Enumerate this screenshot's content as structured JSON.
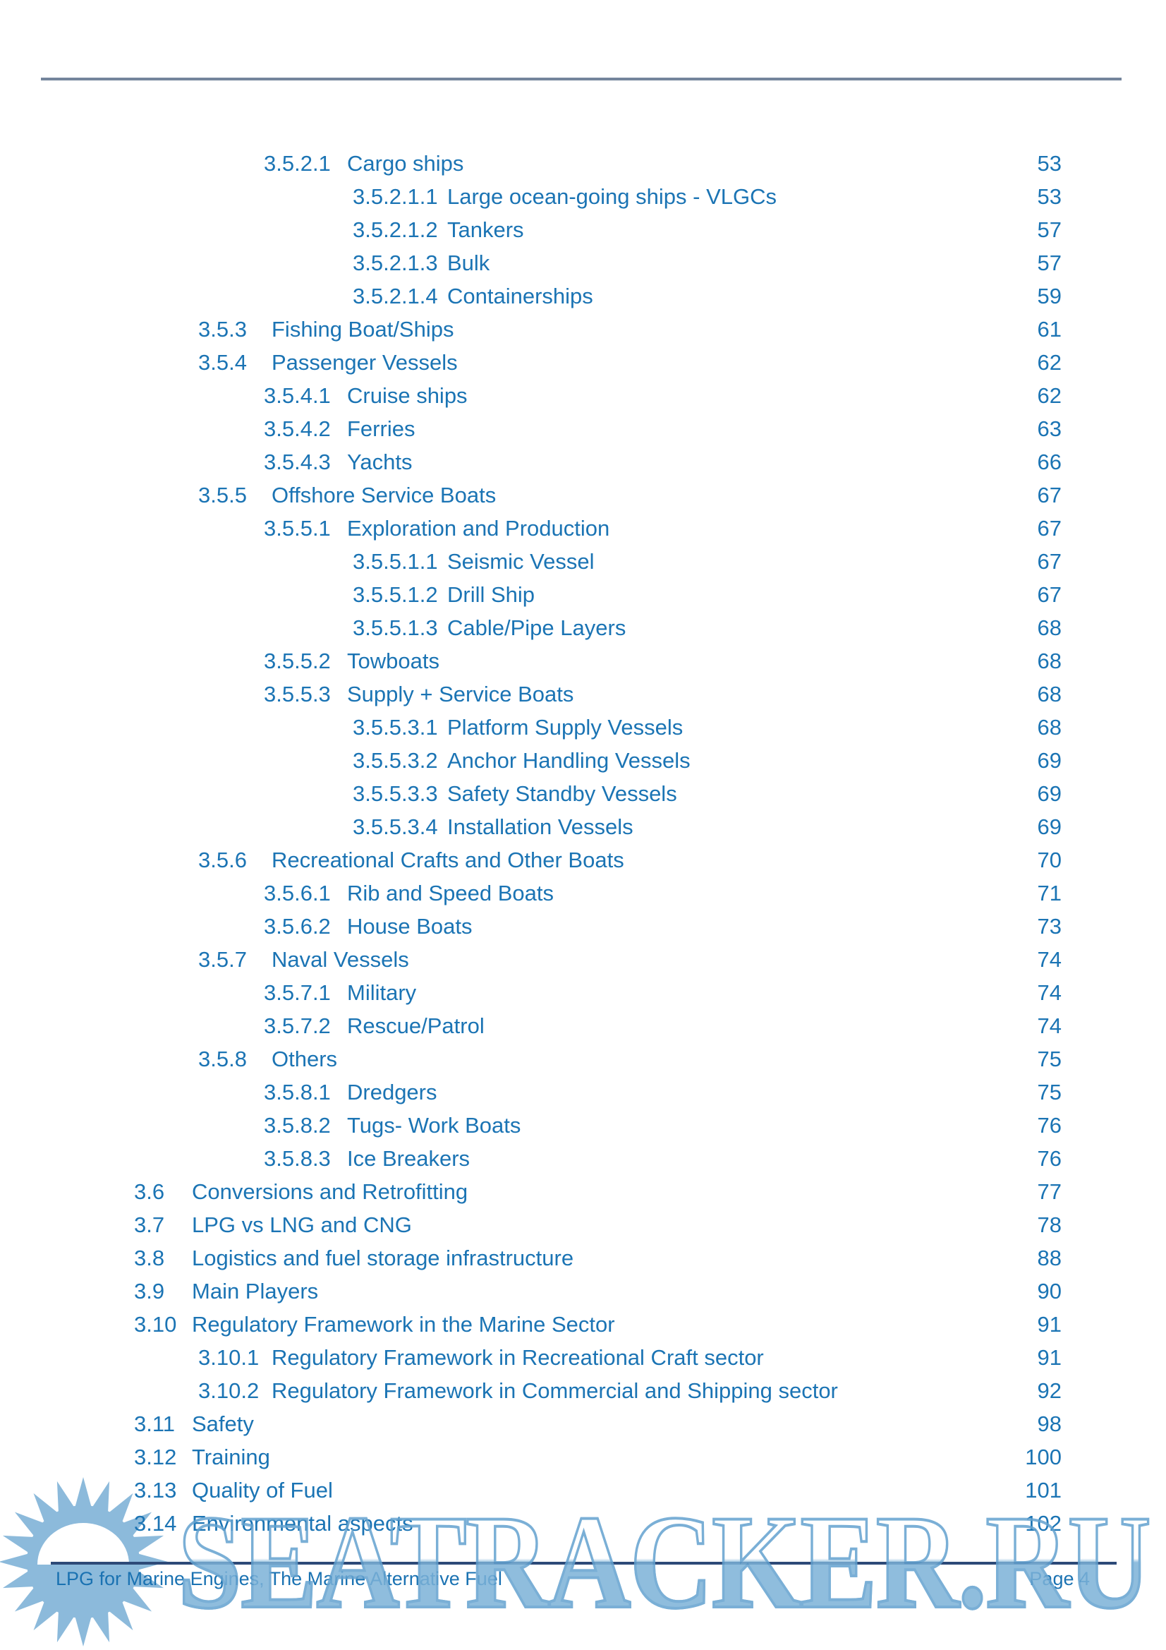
{
  "colors": {
    "toc_text": "#1b74b4",
    "header_rule": "#74859c",
    "footer_rule": "#2d4a78",
    "watermark_fill": "#7cb2d8",
    "watermark_outline": "#63a2cf",
    "sun_logo": "#8cbadb"
  },
  "watermark": {
    "text": "SEATRACKER.RU"
  },
  "logo": {
    "icon": "sun-logo"
  },
  "footer": {
    "left_text": "LPG for Marine Engines, The Marine Alternative Fuel",
    "page_label": "Page 4"
  },
  "toc": {
    "entries": [
      {
        "num": "3.5.2.1",
        "title": "Cargo ships",
        "page": "53",
        "level": 3
      },
      {
        "num": "3.5.2.1.1",
        "title": "Large ocean-going ships - VLGCs",
        "page": "53",
        "level": 4
      },
      {
        "num": "3.5.2.1.2",
        "title": "Tankers",
        "page": "57",
        "level": 4
      },
      {
        "num": "3.5.2.1.3",
        "title": "Bulk",
        "page": "57",
        "level": 4
      },
      {
        "num": "3.5.2.1.4",
        "title": "Containerships",
        "page": "59",
        "level": 4
      },
      {
        "num": "3.5.3",
        "title": "Fishing Boat/Ships",
        "page": "61",
        "level": 2
      },
      {
        "num": "3.5.4",
        "title": "Passenger Vessels",
        "page": "62",
        "level": 2
      },
      {
        "num": "3.5.4.1",
        "title": "Cruise ships",
        "page": "62",
        "level": 3
      },
      {
        "num": "3.5.4.2",
        "title": "Ferries",
        "page": "63",
        "level": 3
      },
      {
        "num": "3.5.4.3",
        "title": "Yachts",
        "page": "66",
        "level": 3
      },
      {
        "num": "3.5.5",
        "title": "Offshore Service Boats",
        "page": "67",
        "level": 2
      },
      {
        "num": "3.5.5.1",
        "title": "Exploration and Production",
        "page": "67",
        "level": 3
      },
      {
        "num": "3.5.5.1.1",
        "title": "Seismic Vessel",
        "page": "67",
        "level": 4
      },
      {
        "num": "3.5.5.1.2",
        "title": "Drill Ship",
        "page": "67",
        "level": 4
      },
      {
        "num": "3.5.5.1.3",
        "title": "Cable/Pipe Layers",
        "page": "68",
        "level": 4
      },
      {
        "num": "3.5.5.2",
        "title": "Towboats",
        "page": "68",
        "level": 3
      },
      {
        "num": "3.5.5.3",
        "title": "Supply + Service Boats",
        "page": "68",
        "level": 3
      },
      {
        "num": "3.5.5.3.1",
        "title": "Platform Supply Vessels",
        "page": "68",
        "level": 4
      },
      {
        "num": "3.5.5.3.2",
        "title": "Anchor Handling Vessels",
        "page": "69",
        "level": 4
      },
      {
        "num": "3.5.5.3.3",
        "title": "Safety Standby Vessels",
        "page": "69",
        "level": 4
      },
      {
        "num": "3.5.5.3.4",
        "title": "Installation Vessels",
        "page": "69",
        "level": 4
      },
      {
        "num": "3.5.6",
        "title": "Recreational Crafts and Other Boats",
        "page": "70",
        "level": 2
      },
      {
        "num": "3.5.6.1",
        "title": "Rib and Speed Boats",
        "page": "71",
        "level": 3
      },
      {
        "num": "3.5.6.2",
        "title": "House Boats",
        "page": "73",
        "level": 3
      },
      {
        "num": "3.5.7",
        "title": "Naval Vessels",
        "page": "74",
        "level": 2
      },
      {
        "num": "3.5.7.1",
        "title": "Military",
        "page": "74",
        "level": 3
      },
      {
        "num": "3.5.7.2",
        "title": "Rescue/Patrol",
        "page": "74",
        "level": 3
      },
      {
        "num": "3.5.8",
        "title": "Others",
        "page": "75",
        "level": 2
      },
      {
        "num": "3.5.8.1",
        "title": "Dredgers",
        "page": "75",
        "level": 3
      },
      {
        "num": "3.5.8.2",
        "title": "Tugs- Work Boats",
        "page": "76",
        "level": 3
      },
      {
        "num": "3.5.8.3",
        "title": "Ice Breakers",
        "page": "76",
        "level": 3
      },
      {
        "num": "3.6",
        "title": "Conversions and Retrofitting",
        "page": "77",
        "level": 1
      },
      {
        "num": "3.7",
        "title": "LPG vs LNG and CNG",
        "page": "78",
        "level": 1
      },
      {
        "num": "3.8",
        "title": "Logistics and fuel storage infrastructure",
        "page": "88",
        "level": 1
      },
      {
        "num": "3.9",
        "title": "Main Players",
        "page": "90",
        "level": 1
      },
      {
        "num": "3.10",
        "title": "Regulatory Framework in the Marine Sector",
        "page": "91",
        "level": 1
      },
      {
        "num": "3.10.1",
        "title": "Regulatory Framework in Recreational Craft sector",
        "page": "91",
        "level": 2
      },
      {
        "num": "3.10.2",
        "title": "Regulatory Framework in Commercial and Shipping sector",
        "page": "92",
        "level": 2
      },
      {
        "num": "3.11",
        "title": "Safety",
        "page": "98",
        "level": 1
      },
      {
        "num": "3.12",
        "title": "Training",
        "page": "100",
        "level": 1
      },
      {
        "num": "3.13",
        "title": "Quality of Fuel",
        "page": "101",
        "level": 1
      },
      {
        "num": "3.14",
        "title": "Environmental aspects",
        "page": "102",
        "level": 1
      }
    ]
  }
}
